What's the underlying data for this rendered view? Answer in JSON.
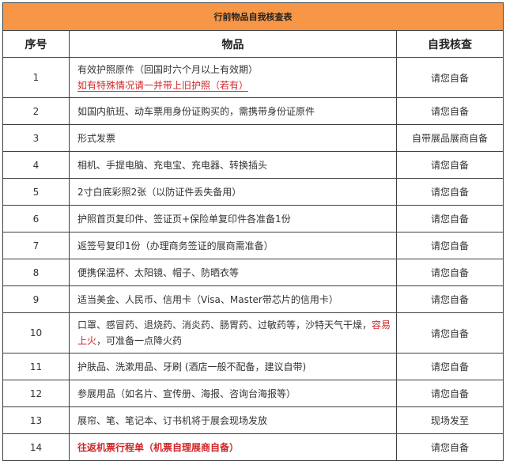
{
  "title": "行前物品自我核查表",
  "headers": {
    "num": "序号",
    "item": "物品",
    "check": "自我核查"
  },
  "rows": [
    {
      "num": "1",
      "item": "有效护照原件（回国时六个月以上有效期）",
      "note": "如有特殊情况请一并带上旧护照（若有）",
      "check": "请您自备"
    },
    {
      "num": "2",
      "item": "如国内航班、动车票用身份证购买的，需携带身份证原件",
      "check": "请您自备"
    },
    {
      "num": "3",
      "item": "形式发票",
      "check": "自带展品展商自备"
    },
    {
      "num": "4",
      "item": "相机、手提电脑、充电宝、充电器、转换插头",
      "check": "请您自备"
    },
    {
      "num": "5",
      "item": "2寸白底彩照2张（以防证件丢失备用）",
      "check": "请您自备"
    },
    {
      "num": "6",
      "item": "护照首页复印件、签证页+保险单复印件各准备1份",
      "check": "请您自备"
    },
    {
      "num": "7",
      "item": "返签号复印1份（办理商务签证的展商需准备）",
      "check": "请您自备"
    },
    {
      "num": "8",
      "item": "便携保温杯、太阳镜、帽子、防晒衣等",
      "check": "请您自备"
    },
    {
      "num": "9",
      "item": "适当美金、人民币、信用卡（Visa、Master带芯片的信用卡）",
      "check": "请您自备"
    },
    {
      "num": "10",
      "item": "口罩、感冒药、退烧药、消炎药、肠胃药、过敏药等，沙特天气干燥，",
      "item_red": "容易上火",
      "item_tail": "，可准备一点降火药",
      "check": "请您自备"
    },
    {
      "num": "11",
      "item": "护肤品、洗漱用品、牙刷 (酒店一般不配备，建议自带)",
      "check": "请您自备"
    },
    {
      "num": "12",
      "item": "参展用品（如名片、宣传册、海报、咨询台海报等）",
      "check": "请您自备"
    },
    {
      "num": "13",
      "item": "展帘、笔、笔记本、订书机将于展会现场发放",
      "check": "现场发至"
    },
    {
      "num": "14",
      "item": "往返机票行程单（机票自理展商自备）",
      "check": "请您自备"
    }
  ]
}
